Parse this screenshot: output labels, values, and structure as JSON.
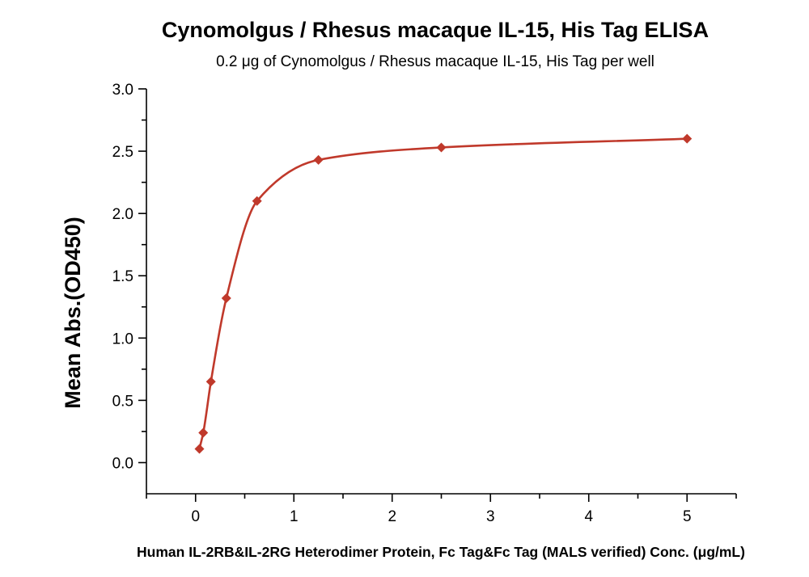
{
  "chart_data": {
    "type": "scatter",
    "title": "Cynomolgus / Rhesus macaque IL-15, His Tag ELISA",
    "subtitle": "0.2 μg of Cynomolgus / Rhesus macaque IL-15, His Tag per well",
    "xlabel": "Human IL-2RB&IL-2RG Heterodimer Protein, Fc Tag&Fc Tag (MALS verified) Conc. (μg/mL)",
    "ylabel": "Mean Abs.(OD450)",
    "xlim": [
      -0.5,
      5.5
    ],
    "ylim": [
      -0.25,
      3.0
    ],
    "x_ticks": [
      0,
      1,
      2,
      3,
      4,
      5
    ],
    "x_tick_labels": [
      "0",
      "1",
      "2",
      "3",
      "4",
      "5"
    ],
    "y_ticks": [
      0.0,
      0.5,
      1.0,
      1.5,
      2.0,
      2.5,
      3.0
    ],
    "y_tick_labels": [
      "0.0",
      "0.5",
      "1.0",
      "1.5",
      "2.0",
      "2.5",
      "3.0"
    ],
    "grid": false,
    "series": [
      {
        "color": "#C0392B",
        "marker": "diamond",
        "x": [
          0.039,
          0.078,
          0.156,
          0.313,
          0.625,
          1.25,
          2.5,
          5.0
        ],
        "y": [
          0.11,
          0.24,
          0.65,
          1.32,
          2.1,
          2.43,
          2.53,
          2.6
        ]
      }
    ]
  }
}
